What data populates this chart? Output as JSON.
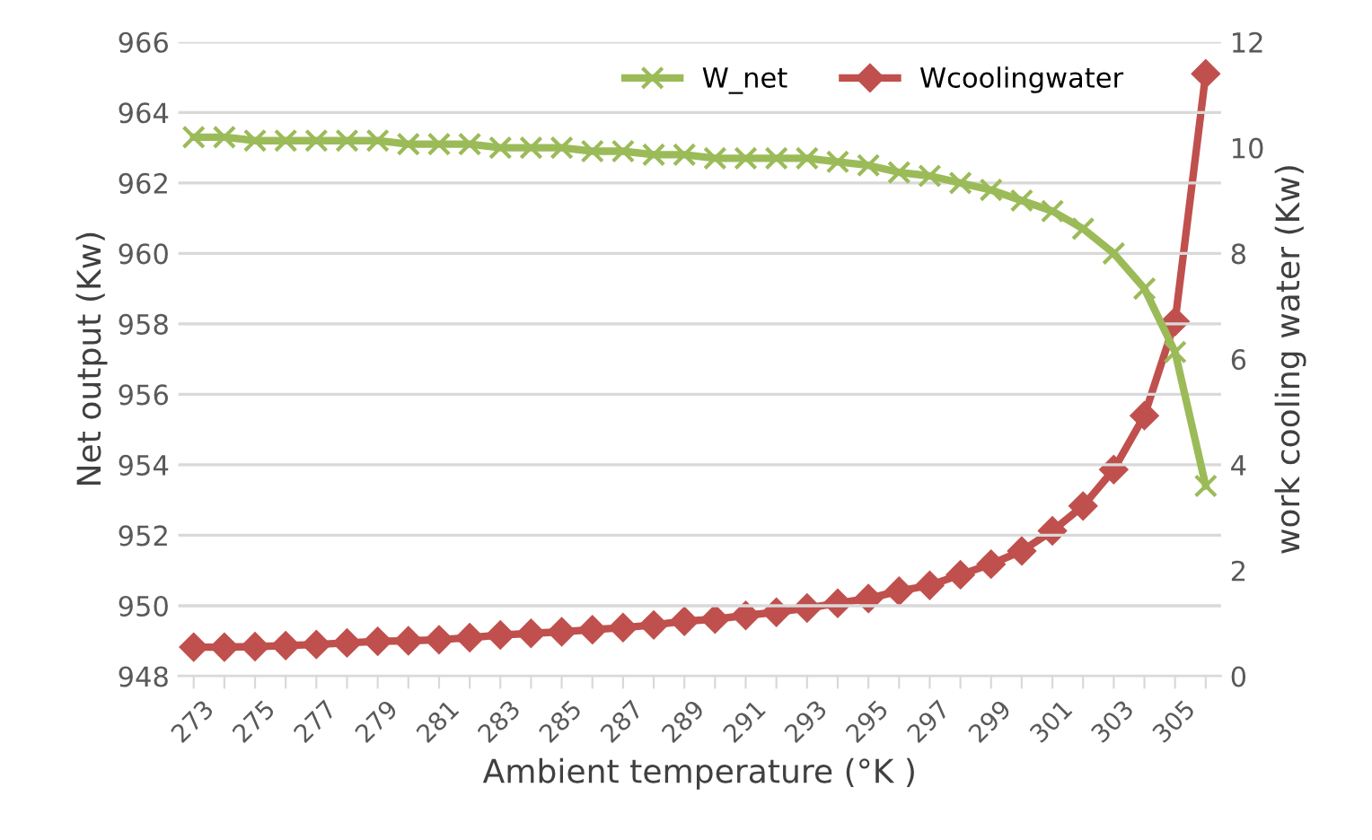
{
  "chart_data": {
    "type": "line",
    "xlabel": "Ambient temperature (°K )",
    "ylabel": "Net output (Kw)",
    "y2label": "work cooling water (Kw)",
    "categories": [
      "273",
      null,
      "275",
      null,
      "277",
      null,
      "279",
      null,
      "281",
      null,
      "283",
      null,
      "285",
      null,
      "287",
      null,
      "289",
      null,
      "291",
      null,
      "293",
      null,
      "295",
      null,
      "297",
      null,
      "299",
      null,
      "301",
      null,
      "303",
      null,
      "305",
      null
    ],
    "series": [
      {
        "name": "W_net",
        "color": "#9bbb59",
        "marker": "cross",
        "values": [
          963.3,
          963.3,
          963.2,
          963.2,
          963.2,
          963.2,
          963.2,
          963.1,
          963.1,
          963.1,
          963.0,
          963.0,
          963.0,
          962.9,
          962.9,
          962.8,
          962.8,
          962.7,
          962.7,
          962.7,
          962.7,
          962.6,
          962.5,
          962.3,
          962.2,
          962.0,
          961.8,
          961.5,
          961.2,
          960.7,
          960.0,
          959.0,
          957.2,
          953.4
        ]
      },
      {
        "name": "Wcoolingwater",
        "color": "#c0504d",
        "marker": "diamond",
        "axis": "y2",
        "values": [
          0.55,
          0.55,
          0.56,
          0.58,
          0.6,
          0.63,
          0.66,
          0.67,
          0.69,
          0.73,
          0.78,
          0.81,
          0.84,
          0.88,
          0.92,
          0.97,
          1.04,
          1.08,
          1.15,
          1.21,
          1.29,
          1.38,
          1.47,
          1.61,
          1.72,
          1.92,
          2.12,
          2.37,
          2.75,
          3.22,
          3.91,
          4.93,
          6.71,
          11.4
        ]
      }
    ],
    "ylim": [
      948,
      966
    ],
    "yticks": [
      948,
      950,
      952,
      954,
      956,
      958,
      960,
      962,
      964,
      966
    ],
    "y2lim": [
      0,
      12
    ],
    "y2ticks": [
      0,
      2,
      4,
      6,
      8,
      10,
      12
    ],
    "grid": "y",
    "legend": "top right",
    "line_style": "solid"
  }
}
